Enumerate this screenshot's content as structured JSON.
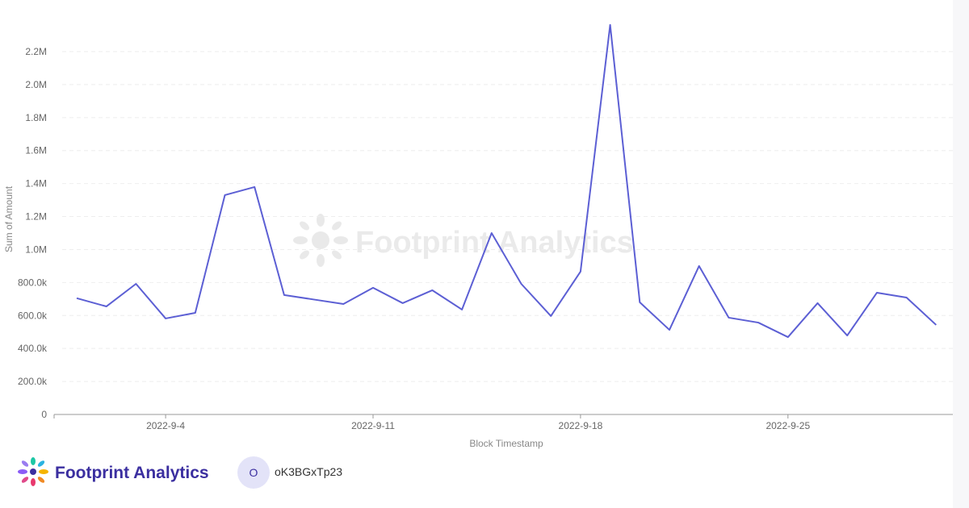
{
  "chart_data": {
    "type": "line",
    "watermark": "Footprint Analytics",
    "y_label": "Sum of Amount",
    "x_label": "Block Timestamp",
    "x": [
      "2022-9-1",
      "2022-9-2",
      "2022-9-3",
      "2022-9-4",
      "2022-9-5",
      "2022-9-6",
      "2022-9-7",
      "2022-9-8",
      "2022-9-9",
      "2022-9-10",
      "2022-9-11",
      "2022-9-12",
      "2022-9-13",
      "2022-9-14",
      "2022-9-15",
      "2022-9-16",
      "2022-9-17",
      "2022-9-18",
      "2022-9-19",
      "2022-9-20",
      "2022-9-21",
      "2022-9-22",
      "2022-9-23",
      "2022-9-24",
      "2022-9-25",
      "2022-9-26",
      "2022-9-27",
      "2022-9-28",
      "2022-9-29",
      "2022-9-30"
    ],
    "xticks": [
      "2022-9-4",
      "2022-9-11",
      "2022-9-18",
      "2022-9-25"
    ],
    "series": [
      {
        "name": "Sum of Amount",
        "color": "#5c5fd4",
        "values": [
          705000,
          655000,
          792000,
          582000,
          616000,
          1330000,
          1379000,
          724000,
          697000,
          670000,
          768000,
          675000,
          753000,
          636000,
          1100000,
          792000,
          597000,
          866000,
          2362000,
          680000,
          513000,
          900000,
          587000,
          557000,
          469000,
          675000,
          479000,
          738000,
          709000,
          543000
        ]
      }
    ],
    "ylim": [
      0,
      2400000
    ],
    "yticks": [
      0,
      {
        "value": 200000,
        "label": "200.0k"
      },
      {
        "value": 400000,
        "label": "400.0k"
      },
      {
        "value": 600000,
        "label": "600.0k"
      },
      {
        "value": 800000,
        "label": "800.0k"
      },
      {
        "value": 1000000,
        "label": "1.0M"
      },
      {
        "value": 1200000,
        "label": "1.2M"
      },
      {
        "value": 1400000,
        "label": "1.4M"
      },
      {
        "value": 1600000,
        "label": "1.6M"
      },
      {
        "value": 1800000,
        "label": "1.8M"
      },
      {
        "value": 2000000,
        "label": "2.0M"
      },
      {
        "value": 2200000,
        "label": "2.2M"
      }
    ],
    "grid": true
  },
  "footer": {
    "brand": "Footprint Analytics",
    "avatar": "O",
    "user": "oK3BGxTp23"
  }
}
